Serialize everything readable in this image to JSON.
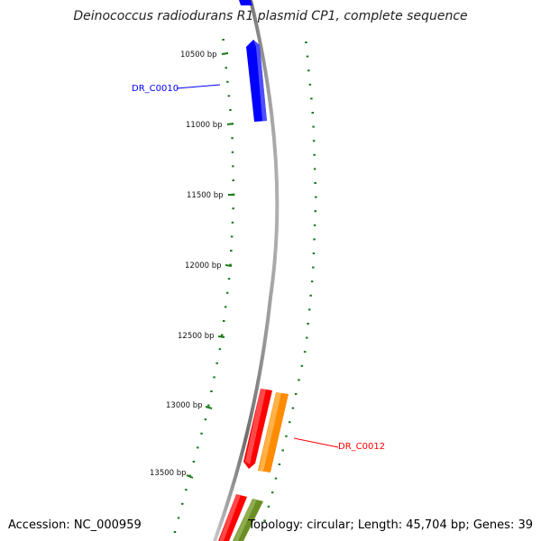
{
  "title": "Deinococcus radiodurans R1 plasmid CP1, complete sequence",
  "footer": {
    "accession": "Accession: NC_000959",
    "summary": "Topology: circular; Length: 45,704 bp; Genes: 39"
  },
  "ruler": {
    "labels": [
      "10500 bp",
      "11000 bp",
      "11500 bp",
      "12000 bp",
      "12500 bp",
      "13000 bp",
      "13500 bp"
    ],
    "tick_color": "#1a7a1a"
  },
  "backbone_color": "#8c8c8c",
  "genes": [
    {
      "label": "DR_C0010",
      "color": "#0000ff",
      "strand": "forward"
    },
    {
      "label": "DR_C0012",
      "color": "#ff0000",
      "strand": "reverse"
    },
    {
      "label": "",
      "color": "#ff8c00",
      "strand": "reverse"
    },
    {
      "label": "",
      "color": "#ff0000",
      "strand": "forward"
    },
    {
      "label": "",
      "color": "#6b8e23",
      "strand": "forward"
    },
    {
      "label": "",
      "color": "#0000ff",
      "strand": "forward"
    }
  ]
}
